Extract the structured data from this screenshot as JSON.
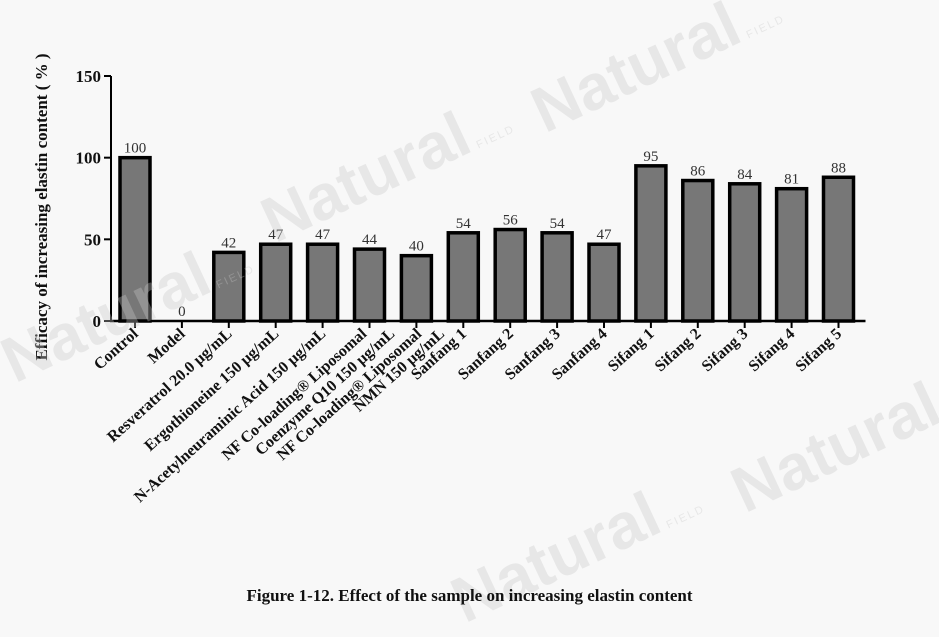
{
  "chart_data": {
    "type": "bar",
    "title": "",
    "xlabel": "",
    "ylabel": "Efficacy of increasing elastin content ( % )",
    "ylim": [
      0,
      150
    ],
    "yticks": [
      0,
      50,
      100,
      150
    ],
    "grid": false,
    "legend": null,
    "categories": [
      "Control",
      "Model",
      "Resveratrol 20.0 μg/mL",
      "Ergothioneine  150 μg/mL",
      "N-Acetylneuraminic Acid  150 μg/mL",
      "NF Co-loading® Liposomal",
      "Coenzyme Q10 150 μg/mL",
      "NF Co-loading® Liposomal",
      "NMN  150 μg/mL",
      "Sanfang 1",
      "Sanfang 2",
      "Sanfang 3",
      "Sanfang 4",
      "Sifang 1",
      "Sifang 2",
      "Sifang 3",
      "Sifang 4",
      "Sifang 5"
    ],
    "bar_categories": [
      "Control",
      "Model",
      "Resveratrol 20.0 μg/mL",
      "Ergothioneine  150 μg/mL",
      "N-Acetylneuraminic Acid  150 μg/mL / NF Co-loading® Liposomal",
      "Coenzyme Q10 150 μg/mL",
      "NF Co-loading® Liposomal / NMN  150 μg/mL",
      "Sanfang 1",
      "Sanfang 2",
      "Sanfang 3",
      "Sanfang 4",
      "Sifang 1",
      "Sifang 2",
      "Sifang 3",
      "Sifang 4",
      "Sifang 5",
      ""
    ],
    "values": [
      100,
      0,
      42,
      47,
      47,
      44,
      40,
      54,
      56,
      54,
      47,
      95,
      86,
      84,
      81,
      88
    ],
    "value_labels": [
      "100",
      "0",
      "42",
      "47",
      "47",
      "44",
      "40",
      "54",
      "56",
      "54",
      "47",
      "95",
      "86",
      "84",
      "81",
      "88"
    ],
    "tick_labels": [
      "Control",
      "Model",
      "Resveratrol 20.0 μg/mL",
      "Ergothioneine  150 μg/mL",
      "N-Acetylneuraminic Acid  150 μg/mL",
      "NF Co-loading® Liposomal",
      "Coenzyme Q10 150 μg/mL",
      "NF Co-loading® Liposomal",
      "NMN  150 μg/mL",
      "Sanfang 1",
      "Sanfang 2",
      "Sanfang 3",
      "Sanfang 4",
      "Sifang 1",
      "Sifang 2",
      "Sifang 3",
      "Sifang 4",
      "Sifang 5"
    ],
    "colors": {
      "bar_fill": "#777777",
      "bar_stroke": "#000000",
      "axis": "#000000",
      "value_label": "#333333"
    }
  },
  "caption": "Figure 1-12. Effect of the sample on increasing elastin content",
  "watermark": {
    "text": "Natural",
    "subtext": "FIELD"
  }
}
